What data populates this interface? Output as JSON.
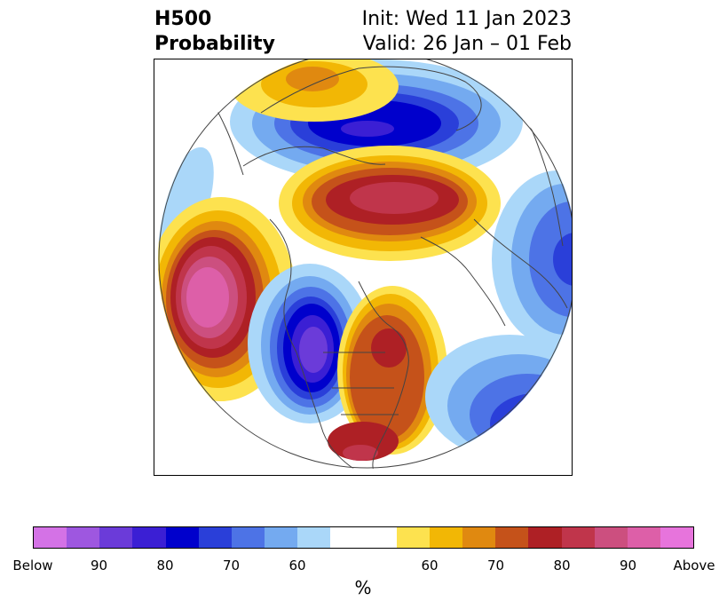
{
  "title": {
    "left_line1": "H500",
    "left_line2": "Probability",
    "right_line1": "Init: Wed 11 Jan 2023",
    "right_line2": "Valid: 26 Jan – 01 Feb"
  },
  "colorbar": {
    "unit": "%",
    "colors": [
      "#d472e6",
      "#9e57e0",
      "#6b3bd9",
      "#3b1fd4",
      "#0000cc",
      "#2a3fd9",
      "#4d73e6",
      "#74aaf0",
      "#aad7f9",
      "#ffffff",
      "#ffffff",
      "#fde24f",
      "#f2b705",
      "#e08910",
      "#c5521a",
      "#ae2025",
      "#c0354b",
      "#cc4f7f",
      "#dd5fa8",
      "#e774dc"
    ],
    "ticks": [
      "Below",
      "90",
      "80",
      "70",
      "60",
      "60",
      "70",
      "80",
      "90",
      "Above"
    ]
  }
}
